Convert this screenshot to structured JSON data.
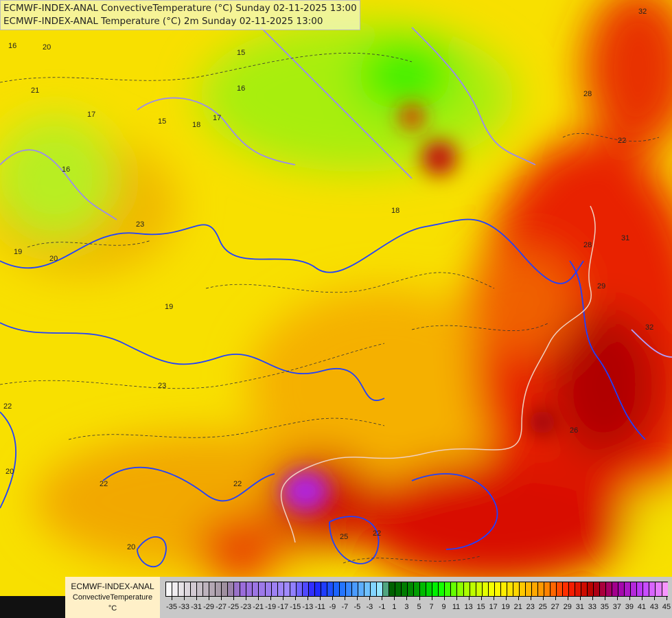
{
  "titles": [
    "ECMWF-INDEX-ANAL ConvectiveTemperature (°C) Sunday 02-11-2025 13:00",
    "ECMWF-INDEX-ANAL Temperature (°C) 2m Sunday 02-11-2025 13:00"
  ],
  "legend": {
    "line1": "ECMWF-INDEX-ANAL",
    "line2": "ConvectiveTemperature",
    "unit": "°C",
    "tick_labels": [
      "-35",
      "-33",
      "-31",
      "-29",
      "-27",
      "-25",
      "-23",
      "-21",
      "-19",
      "-17",
      "-15",
      "-13",
      "-11",
      "-9",
      "-7",
      "-5",
      "-3",
      "-1",
      "1",
      "3",
      "5",
      "7",
      "9",
      "11",
      "13",
      "15",
      "17",
      "19",
      "21",
      "23",
      "25",
      "27",
      "29",
      "31",
      "33",
      "35",
      "37",
      "39",
      "41",
      "43",
      "45"
    ],
    "range": [
      -36,
      45
    ],
    "color_stops": [
      {
        "v": -36,
        "c": "#ffffff"
      },
      {
        "v": -26,
        "c": "#9a8a9a"
      },
      {
        "v": -24,
        "c": "#9a6ad8"
      },
      {
        "v": -16,
        "c": "#a08cff"
      },
      {
        "v": -12,
        "c": "#2020ff"
      },
      {
        "v": -8,
        "c": "#1a6cff"
      },
      {
        "v": -1,
        "c": "#a0f0ff"
      },
      {
        "v": 0,
        "c": "#005a00"
      },
      {
        "v": 4,
        "c": "#009000"
      },
      {
        "v": 8,
        "c": "#00ff00"
      },
      {
        "v": 12,
        "c": "#a0ff00"
      },
      {
        "v": 17,
        "c": "#ffff00"
      },
      {
        "v": 21,
        "c": "#ffd000"
      },
      {
        "v": 25,
        "c": "#ff9000"
      },
      {
        "v": 29,
        "c": "#ff2000"
      },
      {
        "v": 33,
        "c": "#b00000"
      },
      {
        "v": 37,
        "c": "#a000a0"
      },
      {
        "v": 41,
        "c": "#c040ff"
      },
      {
        "v": 45,
        "c": "#ffa0ff"
      }
    ]
  },
  "contour_labels": [
    "16",
    "20",
    "21",
    "23",
    "15",
    "16",
    "17",
    "18",
    "19",
    "20",
    "22",
    "23",
    "22",
    "20",
    "22",
    "20",
    "22",
    "25",
    "26",
    "28",
    "29",
    "31",
    "32",
    "32",
    "28",
    "22",
    "18",
    "16",
    "19",
    "17",
    "15"
  ]
}
